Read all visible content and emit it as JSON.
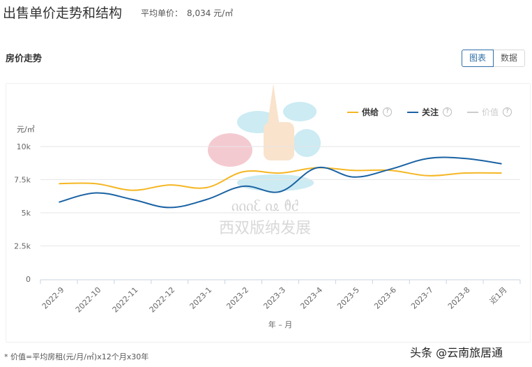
{
  "header": {
    "title": "出售单价走势和结构",
    "avg_price_label": "平均单价：",
    "avg_price_value": "8,034 元/㎡"
  },
  "section": {
    "title": "房价走势",
    "toggle": [
      {
        "label": "图表",
        "active": true
      },
      {
        "label": "数据",
        "active": false
      }
    ]
  },
  "legend": [
    {
      "label": "供给",
      "color": "#f5b622",
      "enabled": true,
      "help_icon": "question-circle-icon"
    },
    {
      "label": "关注",
      "color": "#1a62a3",
      "enabled": true,
      "help_icon": "question-circle-icon"
    },
    {
      "label": "价值",
      "color": "#cccccc",
      "enabled": false,
      "help_icon": "question-circle-icon"
    }
  ],
  "chart_data": {
    "type": "line",
    "title": "房价走势",
    "xlabel": "年 – 月",
    "ylabel": "元/㎡",
    "ylim": [
      0,
      10000
    ],
    "yticks": [
      0,
      2500,
      5000,
      7500,
      10000
    ],
    "ytick_labels": [
      "0",
      "2.5k",
      "5k",
      "7.5k",
      "10k"
    ],
    "grid": true,
    "legend_position": "top-right",
    "categories": [
      "2022-9",
      "2022-10",
      "2022-11",
      "2022-12",
      "2023-1",
      "2023-2",
      "2023-3",
      "2023-4",
      "2023-5",
      "2023-6",
      "2023-7",
      "2023-8",
      "近1月"
    ],
    "series": [
      {
        "name": "供给",
        "color": "#f5b622",
        "values": [
          7200,
          7200,
          6700,
          7100,
          6900,
          8100,
          8000,
          8400,
          8200,
          8200,
          7800,
          8000,
          8000
        ]
      },
      {
        "name": "关注",
        "color": "#1a62a3",
        "values": [
          5800,
          6500,
          6000,
          5400,
          6000,
          7000,
          6600,
          8400,
          7700,
          8300,
          9100,
          9100,
          8700
        ]
      },
      {
        "name": "价值",
        "color": "#cccccc",
        "values": [],
        "hidden": true
      }
    ]
  },
  "footnote": "* 价值=平均房租(元/月/㎡)x12个月x30年",
  "watermark": "头条 @云南旅居通"
}
